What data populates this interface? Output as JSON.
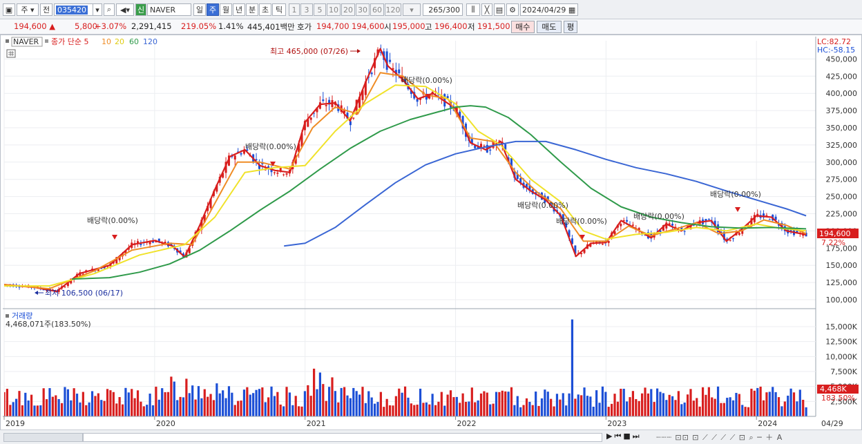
{
  "toolbar": {
    "type_select": "주",
    "prev_label": "전",
    "stock_code": "035420",
    "stock_badge": "신",
    "stock_name": "NAVER",
    "periods": [
      "일",
      "주",
      "월",
      "년",
      "분",
      "초",
      "틱"
    ],
    "active_period": "주",
    "intervals": [
      "1",
      "3",
      "5",
      "10",
      "20",
      "30",
      "60",
      "120"
    ],
    "count_value": "265",
    "count_total": "/300",
    "date": "2024/04/29"
  },
  "quote": {
    "price": "194,600",
    "change": "5,800",
    "change_pct": "+3.07%",
    "volume": "2,291,415",
    "volume_ratio": "219.05%",
    "turnover": "1.41%",
    "amount": "445,401백만",
    "bid_label": "호가",
    "bid1": "194,700",
    "bid2": "194,600",
    "open_label": "시",
    "open": "195,000",
    "high_label": "고",
    "high": "196,400",
    "low_label": "저",
    "low": "191,500",
    "buy": "매수",
    "sell": "매도",
    "avg": "평"
  },
  "chart_data": {
    "type": "line",
    "title": "NAVER",
    "legend": [
      "NAVER",
      "종가 단순 5",
      "10",
      "20",
      "60",
      "120"
    ],
    "ylim": [
      95000,
      480000
    ],
    "x_labels": [
      "2019",
      "2020",
      "2021",
      "2022",
      "2023",
      "2024"
    ],
    "y_ticks": [
      "450,000",
      "425,000",
      "400,000",
      "375,000",
      "350,000",
      "325,000",
      "300,000",
      "275,000",
      "250,000",
      "225,000",
      "200,000",
      "175,000",
      "150,000",
      "125,000",
      "100,000"
    ],
    "lc": "LC:82.72",
    "hc": "HC:-58.15",
    "current_price": "194,600",
    "current_pct": "7.22%",
    "high_note": "최고 465,000 (07/26)",
    "low_note": "최저 106,500 (06/17)",
    "dividend_notes": [
      "배당락(0.00%)",
      "배당락(0.00%)",
      "배당락(0.00%)",
      "배당락(0.00%)",
      "배당락(0.00%)",
      "배당락(0.00%)",
      "배당락(0.00%)"
    ],
    "series": [
      {
        "name": "종가 단순 5",
        "color": "#d81e1e",
        "x": [
          2019.0,
          2019.2,
          2019.35,
          2019.5,
          2019.7,
          2019.85,
          2020.0,
          2020.12,
          2020.2,
          2020.3,
          2020.4,
          2020.5,
          2020.6,
          2020.7,
          2020.8,
          2020.9,
          2021.0,
          2021.1,
          2021.2,
          2021.3,
          2021.4,
          2021.5,
          2021.55,
          2021.65,
          2021.75,
          2021.85,
          2022.0,
          2022.1,
          2022.2,
          2022.3,
          2022.4,
          2022.5,
          2022.6,
          2022.7,
          2022.8,
          2022.9,
          2023.0,
          2023.1,
          2023.2,
          2023.3,
          2023.4,
          2023.5,
          2023.6,
          2023.7,
          2023.8,
          2023.9,
          2024.0,
          2024.1,
          2024.2,
          2024.33
        ],
        "y": [
          122000,
          118000,
          112000,
          138000,
          150000,
          180000,
          186000,
          178000,
          162000,
          208000,
          260000,
          308000,
          318000,
          295000,
          288000,
          285000,
          358000,
          384000,
          386000,
          360000,
          415000,
          465000,
          440000,
          420000,
          392000,
          400000,
          378000,
          328000,
          318000,
          330000,
          275000,
          258000,
          245000,
          222000,
          163000,
          182000,
          183000,
          215000,
          203000,
          190000,
          210000,
          200000,
          212000,
          215000,
          185000,
          202000,
          222000,
          220000,
          200000,
          194600
        ]
      },
      {
        "name": "10",
        "color": "#ef8c25",
        "x": [
          2019.0,
          2019.3,
          2019.6,
          2019.85,
          2020.1,
          2020.25,
          2020.4,
          2020.55,
          2020.7,
          2020.9,
          2021.05,
          2021.2,
          2021.35,
          2021.5,
          2021.65,
          2021.8,
          2021.95,
          2022.1,
          2022.25,
          2022.4,
          2022.55,
          2022.7,
          2022.85,
          2023.0,
          2023.15,
          2023.3,
          2023.45,
          2023.6,
          2023.75,
          2023.9,
          2024.05,
          2024.2,
          2024.33
        ],
        "y": [
          122000,
          116000,
          142000,
          172000,
          182000,
          180000,
          240000,
          300000,
          300000,
          290000,
          350000,
          380000,
          370000,
          430000,
          425000,
          398000,
          392000,
          335000,
          330000,
          285000,
          255000,
          232000,
          185000,
          185000,
          207000,
          193000,
          202000,
          212000,
          196000,
          200000,
          216000,
          208000,
          196000
        ]
      },
      {
        "name": "20",
        "color": "#f0e22a",
        "x": [
          2019.0,
          2019.3,
          2019.6,
          2019.9,
          2020.2,
          2020.4,
          2020.6,
          2020.8,
          2021.0,
          2021.2,
          2021.4,
          2021.6,
          2021.8,
          2022.0,
          2022.15,
          2022.3,
          2022.5,
          2022.7,
          2022.85,
          2023.0,
          2023.2,
          2023.4,
          2023.6,
          2023.8,
          2024.0,
          2024.15,
          2024.33
        ],
        "y": [
          120000,
          120000,
          138000,
          165000,
          180000,
          220000,
          285000,
          292000,
          295000,
          345000,
          385000,
          412000,
          410000,
          385000,
          345000,
          325000,
          275000,
          242000,
          200000,
          188000,
          195000,
          198000,
          205000,
          200000,
          210000,
          204000,
          200000
        ]
      },
      {
        "name": "60",
        "color": "#2f9a4a",
        "x": [
          2019.45,
          2019.7,
          2019.9,
          2020.1,
          2020.3,
          2020.5,
          2020.7,
          2020.9,
          2021.1,
          2021.3,
          2021.5,
          2021.7,
          2021.9,
          2022.0,
          2022.1,
          2022.2,
          2022.35,
          2022.5,
          2022.7,
          2022.9,
          2023.1,
          2023.3,
          2023.5,
          2023.7,
          2023.9,
          2024.1,
          2024.33
        ],
        "y": [
          130000,
          132000,
          140000,
          152000,
          172000,
          200000,
          230000,
          258000,
          290000,
          320000,
          345000,
          362000,
          374000,
          380000,
          382000,
          380000,
          365000,
          340000,
          300000,
          262000,
          235000,
          220000,
          212000,
          206000,
          204000,
          205000,
          203000
        ]
      },
      {
        "name": "120",
        "color": "#3a66d4",
        "x": [
          2020.86,
          2021.0,
          2021.2,
          2021.4,
          2021.6,
          2021.8,
          2022.0,
          2022.2,
          2022.4,
          2022.6,
          2022.8,
          2023.0,
          2023.2,
          2023.4,
          2023.6,
          2023.8,
          2024.0,
          2024.2,
          2024.33
        ],
        "y": [
          178000,
          182000,
          205000,
          238000,
          270000,
          296000,
          312000,
          322000,
          330000,
          330000,
          318000,
          304000,
          292000,
          283000,
          272000,
          258000,
          245000,
          232000,
          222000
        ]
      }
    ]
  },
  "volume": {
    "title": "거래량",
    "value": "4,468,071주(183.50%)",
    "y_ticks": [
      "15,000K",
      "12,500K",
      "10,000K",
      "7,500K",
      "5,000K",
      "2,500K"
    ],
    "current": "4,468K",
    "current_pct": "183.50%"
  },
  "bottom": {
    "date": "04/29"
  }
}
